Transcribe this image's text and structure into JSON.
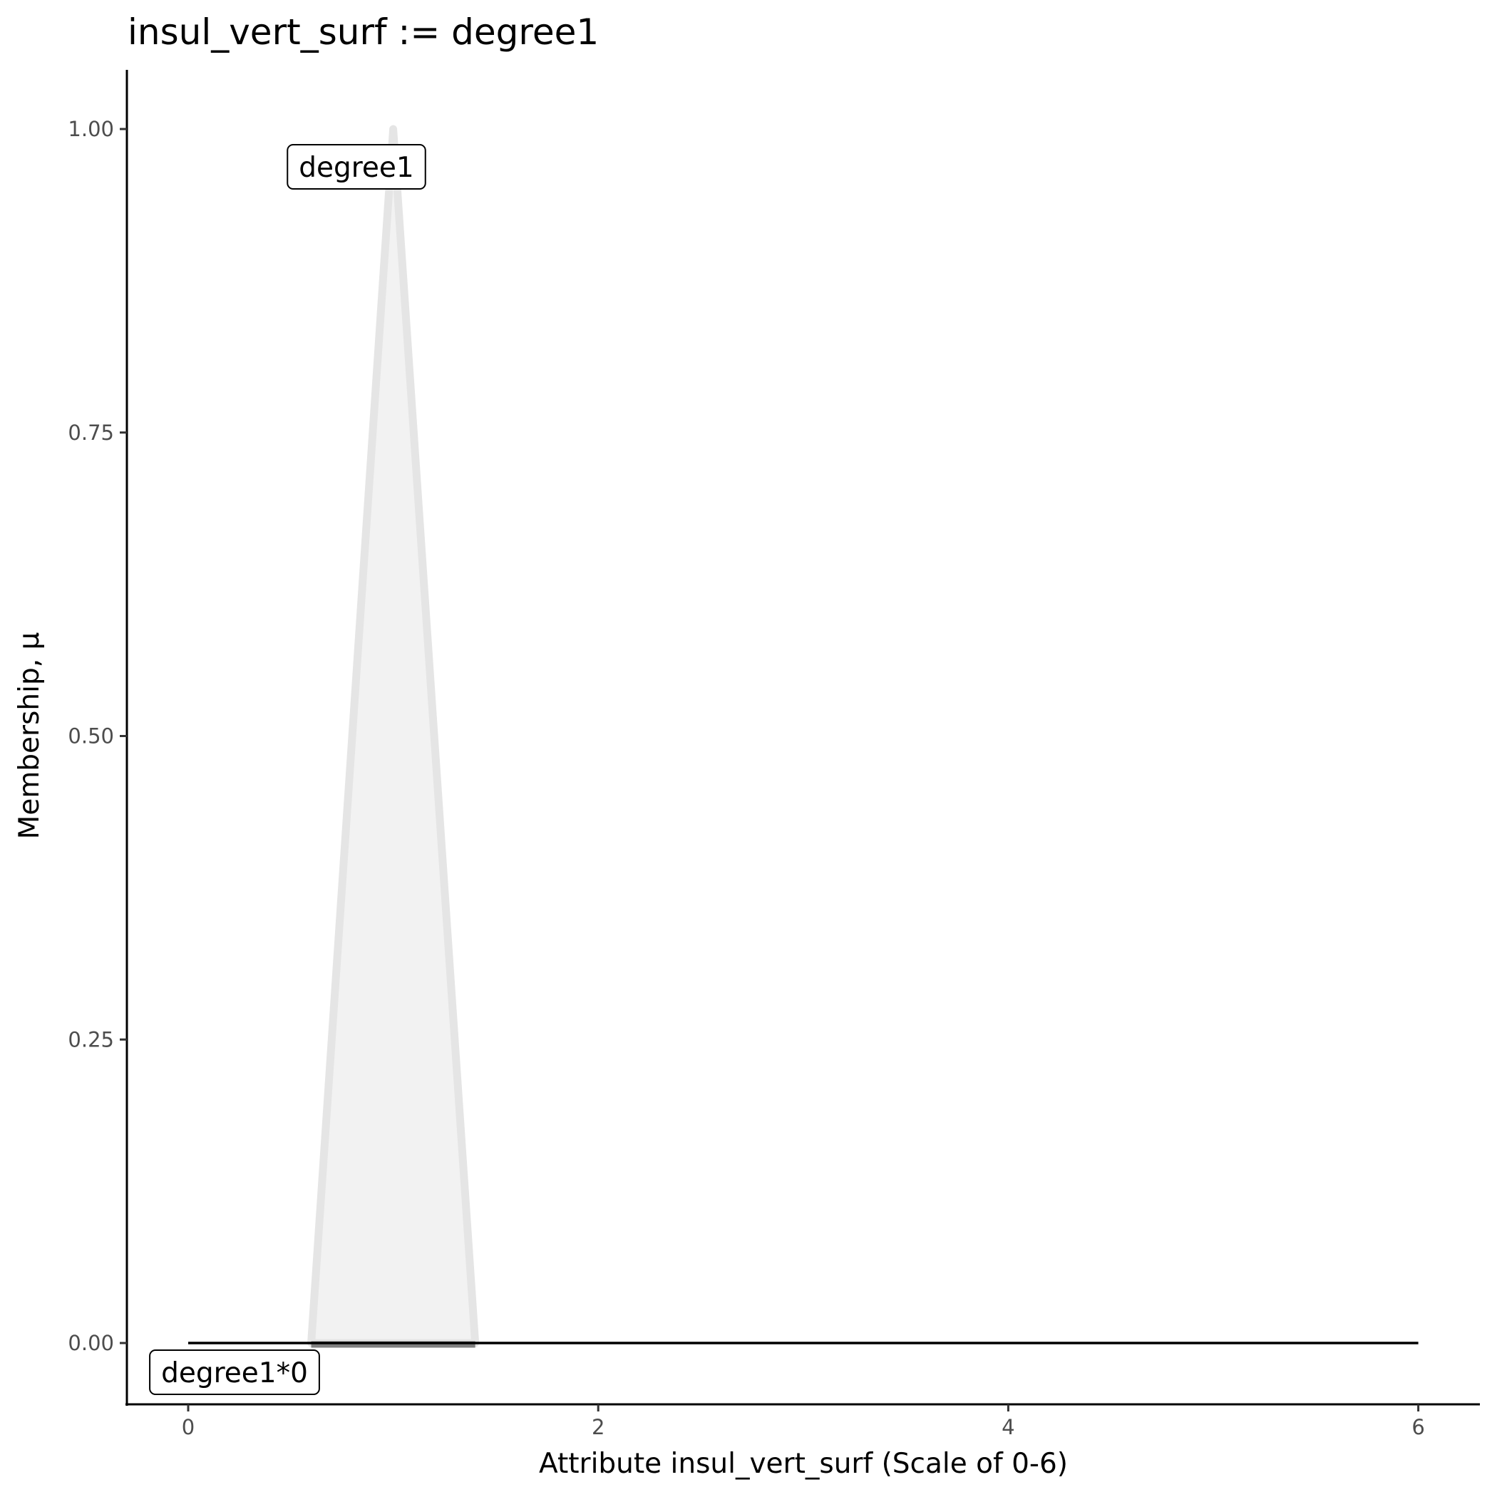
{
  "chart_data": {
    "type": "area",
    "title": "insul_vert_surf := degree1",
    "xlabel": "Attribute insul_vert_surf (Scale of 0-6)",
    "ylabel": "Membership, μ",
    "xlim": [
      -0.3,
      6.3
    ],
    "ylim": [
      -0.05,
      1.05
    ],
    "x_ticks": [
      0,
      2,
      4,
      6
    ],
    "x_tick_labels": [
      "0",
      "2",
      "4",
      "6"
    ],
    "y_ticks": [
      0,
      0.25,
      0.5,
      0.75,
      1
    ],
    "y_tick_labels": [
      "0.00",
      "0.25",
      "0.50",
      "0.75",
      "1.00"
    ],
    "grid": false,
    "membership_function": {
      "name": "degree1",
      "x": [
        0.6,
        1.0,
        1.4
      ],
      "y": [
        0,
        1,
        0
      ],
      "fill_color": "#f2f2f2",
      "line_color": "#e5e5e5"
    },
    "result_line": {
      "name": "degree1*0",
      "x": [
        0,
        6
      ],
      "y": [
        0,
        0
      ],
      "color": "#000000"
    },
    "result_segment": {
      "x": [
        0.6,
        1.4
      ],
      "y": [
        0,
        0
      ],
      "color": "#7f7f7f"
    },
    "annotations": [
      {
        "text": "degree1"
      },
      {
        "text": "degree1*0"
      }
    ]
  }
}
